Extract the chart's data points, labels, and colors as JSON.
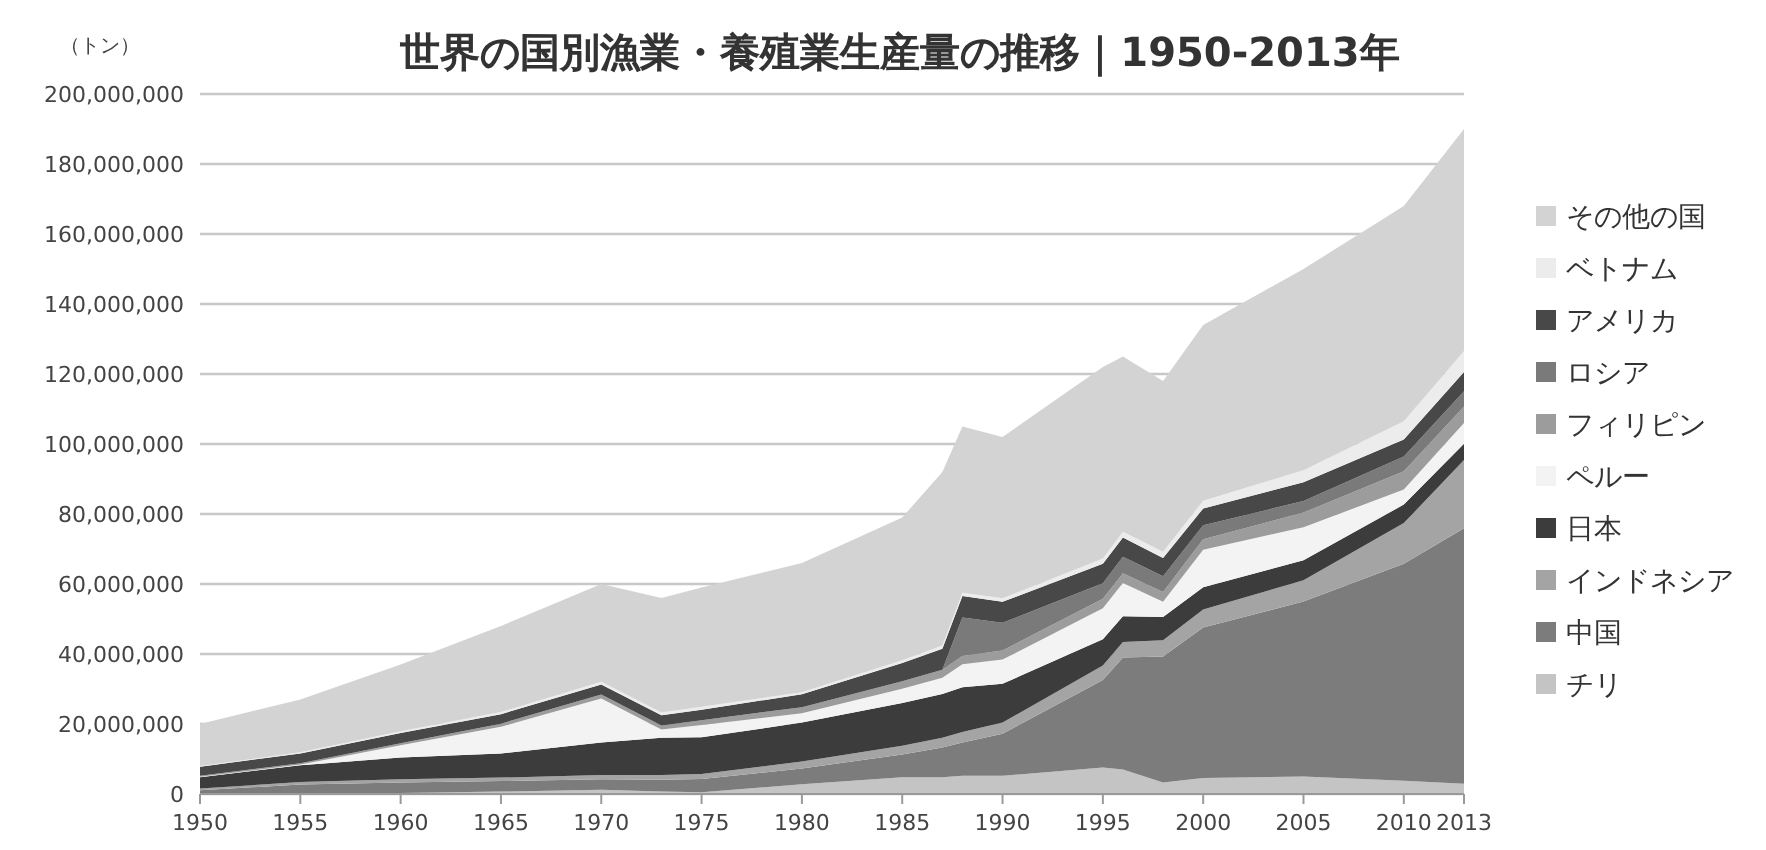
{
  "chart_data": {
    "type": "area",
    "stacked": true,
    "title": "世界の国別漁業・養殖業生産量の推移｜1950-2013年",
    "ylabel": "（トン）",
    "x": [
      1950,
      1955,
      1960,
      1965,
      1970,
      1973,
      1975,
      1980,
      1985,
      1987,
      1988,
      1990,
      1995,
      1996,
      1998,
      2000,
      2005,
      2010,
      2013
    ],
    "xlim": [
      1950,
      2013
    ],
    "xticks": [
      1950,
      1955,
      1960,
      1965,
      1970,
      1975,
      1980,
      1985,
      1990,
      1995,
      2000,
      2005,
      2010,
      2013
    ],
    "ylim": [
      0,
      200000000
    ],
    "yticks": [
      {
        "value": 0,
        "label": "0"
      },
      {
        "value": 20000000,
        "label": "20,000,000"
      },
      {
        "value": 40000000,
        "label": "40,000,000"
      },
      {
        "value": 60000000,
        "label": "60,000,000"
      },
      {
        "value": 80000000,
        "label": "80,000,000"
      },
      {
        "value": 100000000,
        "label": "100,000,000"
      },
      {
        "value": 120000000,
        "label": "120,000,000"
      },
      {
        "value": 140000000,
        "label": "140,000,000"
      },
      {
        "value": 160000000,
        "label": "160,000,000"
      },
      {
        "value": 180000000,
        "label": "180,000,000"
      },
      {
        "value": 200000000,
        "label": "200,000,000"
      }
    ],
    "grid": "y",
    "legend": "right",
    "series": [
      {
        "name": "チリ",
        "color": "#c4c4c4",
        "values": [
          100000,
          200000,
          300000,
          700000,
          1200000,
          700000,
          500000,
          2800000,
          4800000,
          4800000,
          5200000,
          5200000,
          7600000,
          7000000,
          3300000,
          4600000,
          5000000,
          3800000,
          2900000
        ]
      },
      {
        "name": "中国",
        "color": "#7c7c7c",
        "values": [
          1000000,
          2500000,
          3000000,
          3000000,
          3000000,
          3400000,
          3800000,
          4500000,
          6500000,
          8500000,
          9500000,
          12000000,
          25000000,
          32000000,
          36000000,
          43000000,
          50000000,
          62000000,
          73000000
        ]
      },
      {
        "name": "インドネシア",
        "color": "#a4a4a4",
        "values": [
          500000,
          700000,
          900000,
          1000000,
          1200000,
          1300000,
          1400000,
          2000000,
          2500000,
          2800000,
          3000000,
          3200000,
          4100000,
          4400000,
          4600000,
          5100000,
          6100000,
          11600000,
          19500000
        ]
      },
      {
        "name": "日本",
        "color": "#3c3c3c",
        "values": [
          3200000,
          4800000,
          6200000,
          6900000,
          9300000,
          10700000,
          10500000,
          11100000,
          12200000,
          12500000,
          12800000,
          11100000,
          7500000,
          7400000,
          6700000,
          6400000,
          5700000,
          5300000,
          4700000
        ]
      },
      {
        "name": "ペルー",
        "color": "#f3f3f3",
        "values": [
          100000,
          200000,
          3500000,
          7600000,
          12600000,
          2300000,
          3500000,
          2700000,
          4100000,
          4600000,
          6600000,
          6900000,
          8900000,
          9500000,
          4300000,
          10700000,
          9400000,
          4300000,
          5900000
        ]
      },
      {
        "name": "フィリピン",
        "color": "#9c9c9c",
        "values": [
          300000,
          400000,
          600000,
          900000,
          1100000,
          1200000,
          1400000,
          1700000,
          2100000,
          2300000,
          2300000,
          2600000,
          2700000,
          2800000,
          2800000,
          3000000,
          4200000,
          5200000,
          4700000
        ]
      },
      {
        "name": "ロシア",
        "color": "#7a7a7a",
        "values": [
          0,
          0,
          0,
          0,
          0,
          0,
          0,
          0,
          0,
          0,
          11000000,
          7900000,
          4400000,
          4700000,
          4500000,
          4000000,
          3300000,
          4200000,
          4400000
        ]
      },
      {
        "name": "アメリカ",
        "color": "#484848",
        "values": [
          2600000,
          2800000,
          2900000,
          2700000,
          2900000,
          2900000,
          3000000,
          3700000,
          5200000,
          6000000,
          6200000,
          6000000,
          5600000,
          5500000,
          5200000,
          4800000,
          5400000,
          4900000,
          5500000
        ]
      },
      {
        "name": "ベトナム",
        "color": "#ececec",
        "values": [
          200000,
          300000,
          500000,
          600000,
          800000,
          800000,
          800000,
          600000,
          800000,
          900000,
          900000,
          1000000,
          1500000,
          1600000,
          1800000,
          2200000,
          3400000,
          5200000,
          6000000
        ]
      },
      {
        "name": "その他の国",
        "color": "#d3d3d3",
        "values": [
          12000000,
          15100000,
          19100000,
          24600000,
          27900000,
          32700000,
          34100000,
          36900000,
          40800000,
          49600000,
          47500000,
          46100000,
          54700000,
          50100000,
          48800000,
          50200000,
          57500000,
          61500000,
          63400000
        ]
      }
    ]
  }
}
